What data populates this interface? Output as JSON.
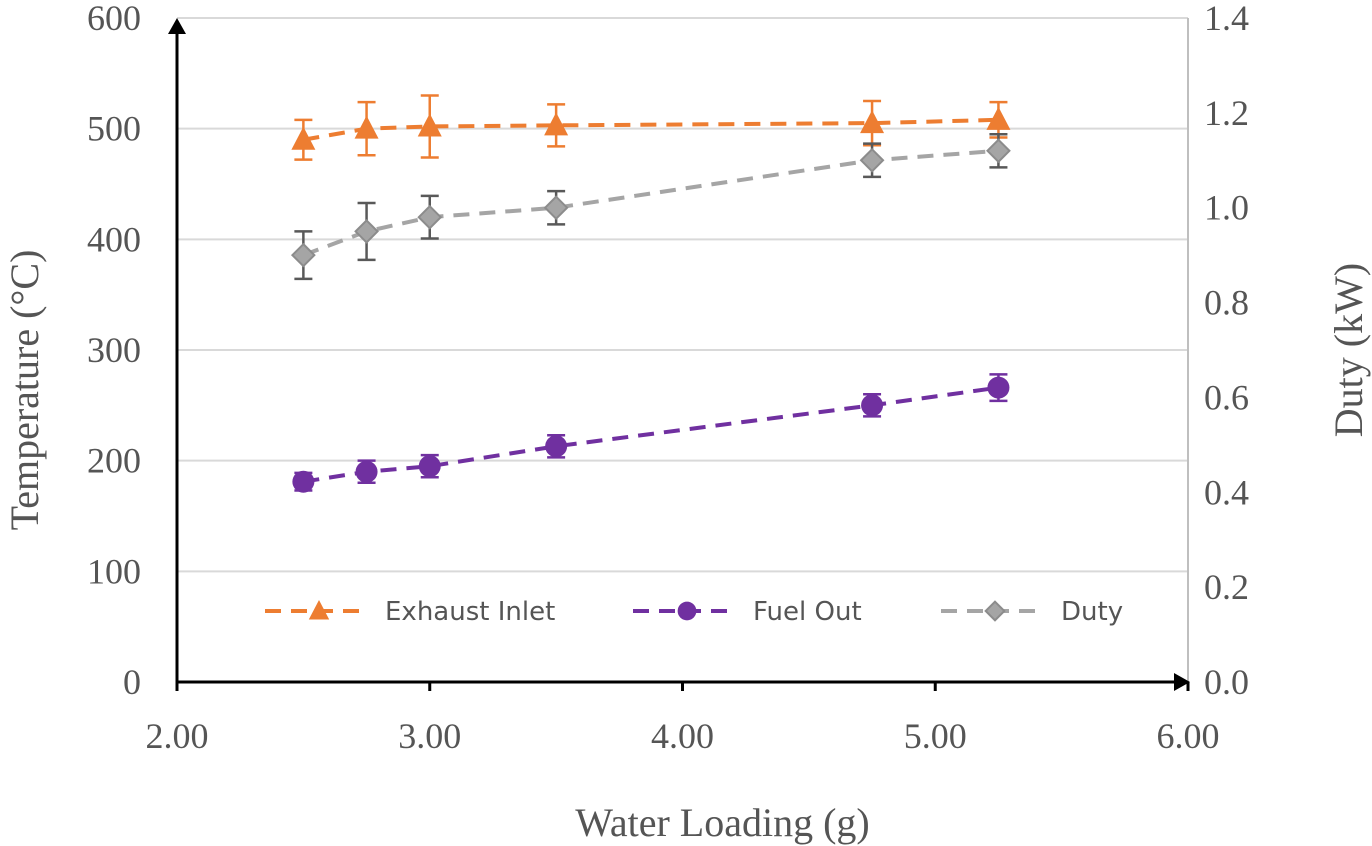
{
  "chart_data": {
    "type": "line",
    "title": "",
    "xlabel": "Water Loading (g)",
    "ylabel": "Temperature (°C)",
    "y2label": "Duty (kW)",
    "xlim": [
      2.0,
      6.0
    ],
    "ylim": [
      0,
      600
    ],
    "y2lim": [
      0.0,
      1.4
    ],
    "x_ticks": [
      2.0,
      3.0,
      4.0,
      5.0,
      6.0
    ],
    "x_tick_labels": [
      "2.00",
      "3.00",
      "4.00",
      "5.00",
      "6.00"
    ],
    "y_ticks": [
      0,
      100,
      200,
      300,
      400,
      500,
      600
    ],
    "y_tick_labels": [
      "0",
      "100",
      "200",
      "300",
      "400",
      "500",
      "600"
    ],
    "y2_ticks": [
      0.0,
      0.2,
      0.4,
      0.6,
      0.8,
      1.0,
      1.2,
      1.4
    ],
    "y2_tick_labels": [
      "0.0",
      "0.2",
      "0.4",
      "0.6",
      "0.8",
      "1.0",
      "1.2",
      "1.4"
    ],
    "grid": true,
    "legend_position": "bottom-inside",
    "x": [
      2.5,
      2.75,
      3.0,
      3.5,
      4.75,
      5.25
    ],
    "series": [
      {
        "name": "Exhaust Inlet",
        "axis": "left",
        "marker": "triangle",
        "color": "#ED7D31",
        "errorbar_color": "#ED7D31",
        "values": [
          490,
          500,
          502,
          503,
          505,
          508
        ],
        "errors": [
          18,
          24,
          28,
          19,
          20,
          16
        ]
      },
      {
        "name": "Fuel Out",
        "axis": "left",
        "marker": "circle",
        "color": "#7030A0",
        "errorbar_color": "#7030A0",
        "values": [
          181,
          190,
          195,
          213,
          250,
          266
        ],
        "errors": [
          8,
          10,
          10,
          10,
          10,
          12
        ]
      },
      {
        "name": "Duty",
        "axis": "right",
        "marker": "diamond",
        "color": "#A5A5A5",
        "errorbar_color": "#595959",
        "values": [
          0.9,
          0.95,
          0.98,
          1.0,
          1.1,
          1.12
        ],
        "errors": [
          0.05,
          0.06,
          0.045,
          0.035,
          0.035,
          0.035
        ]
      }
    ]
  }
}
